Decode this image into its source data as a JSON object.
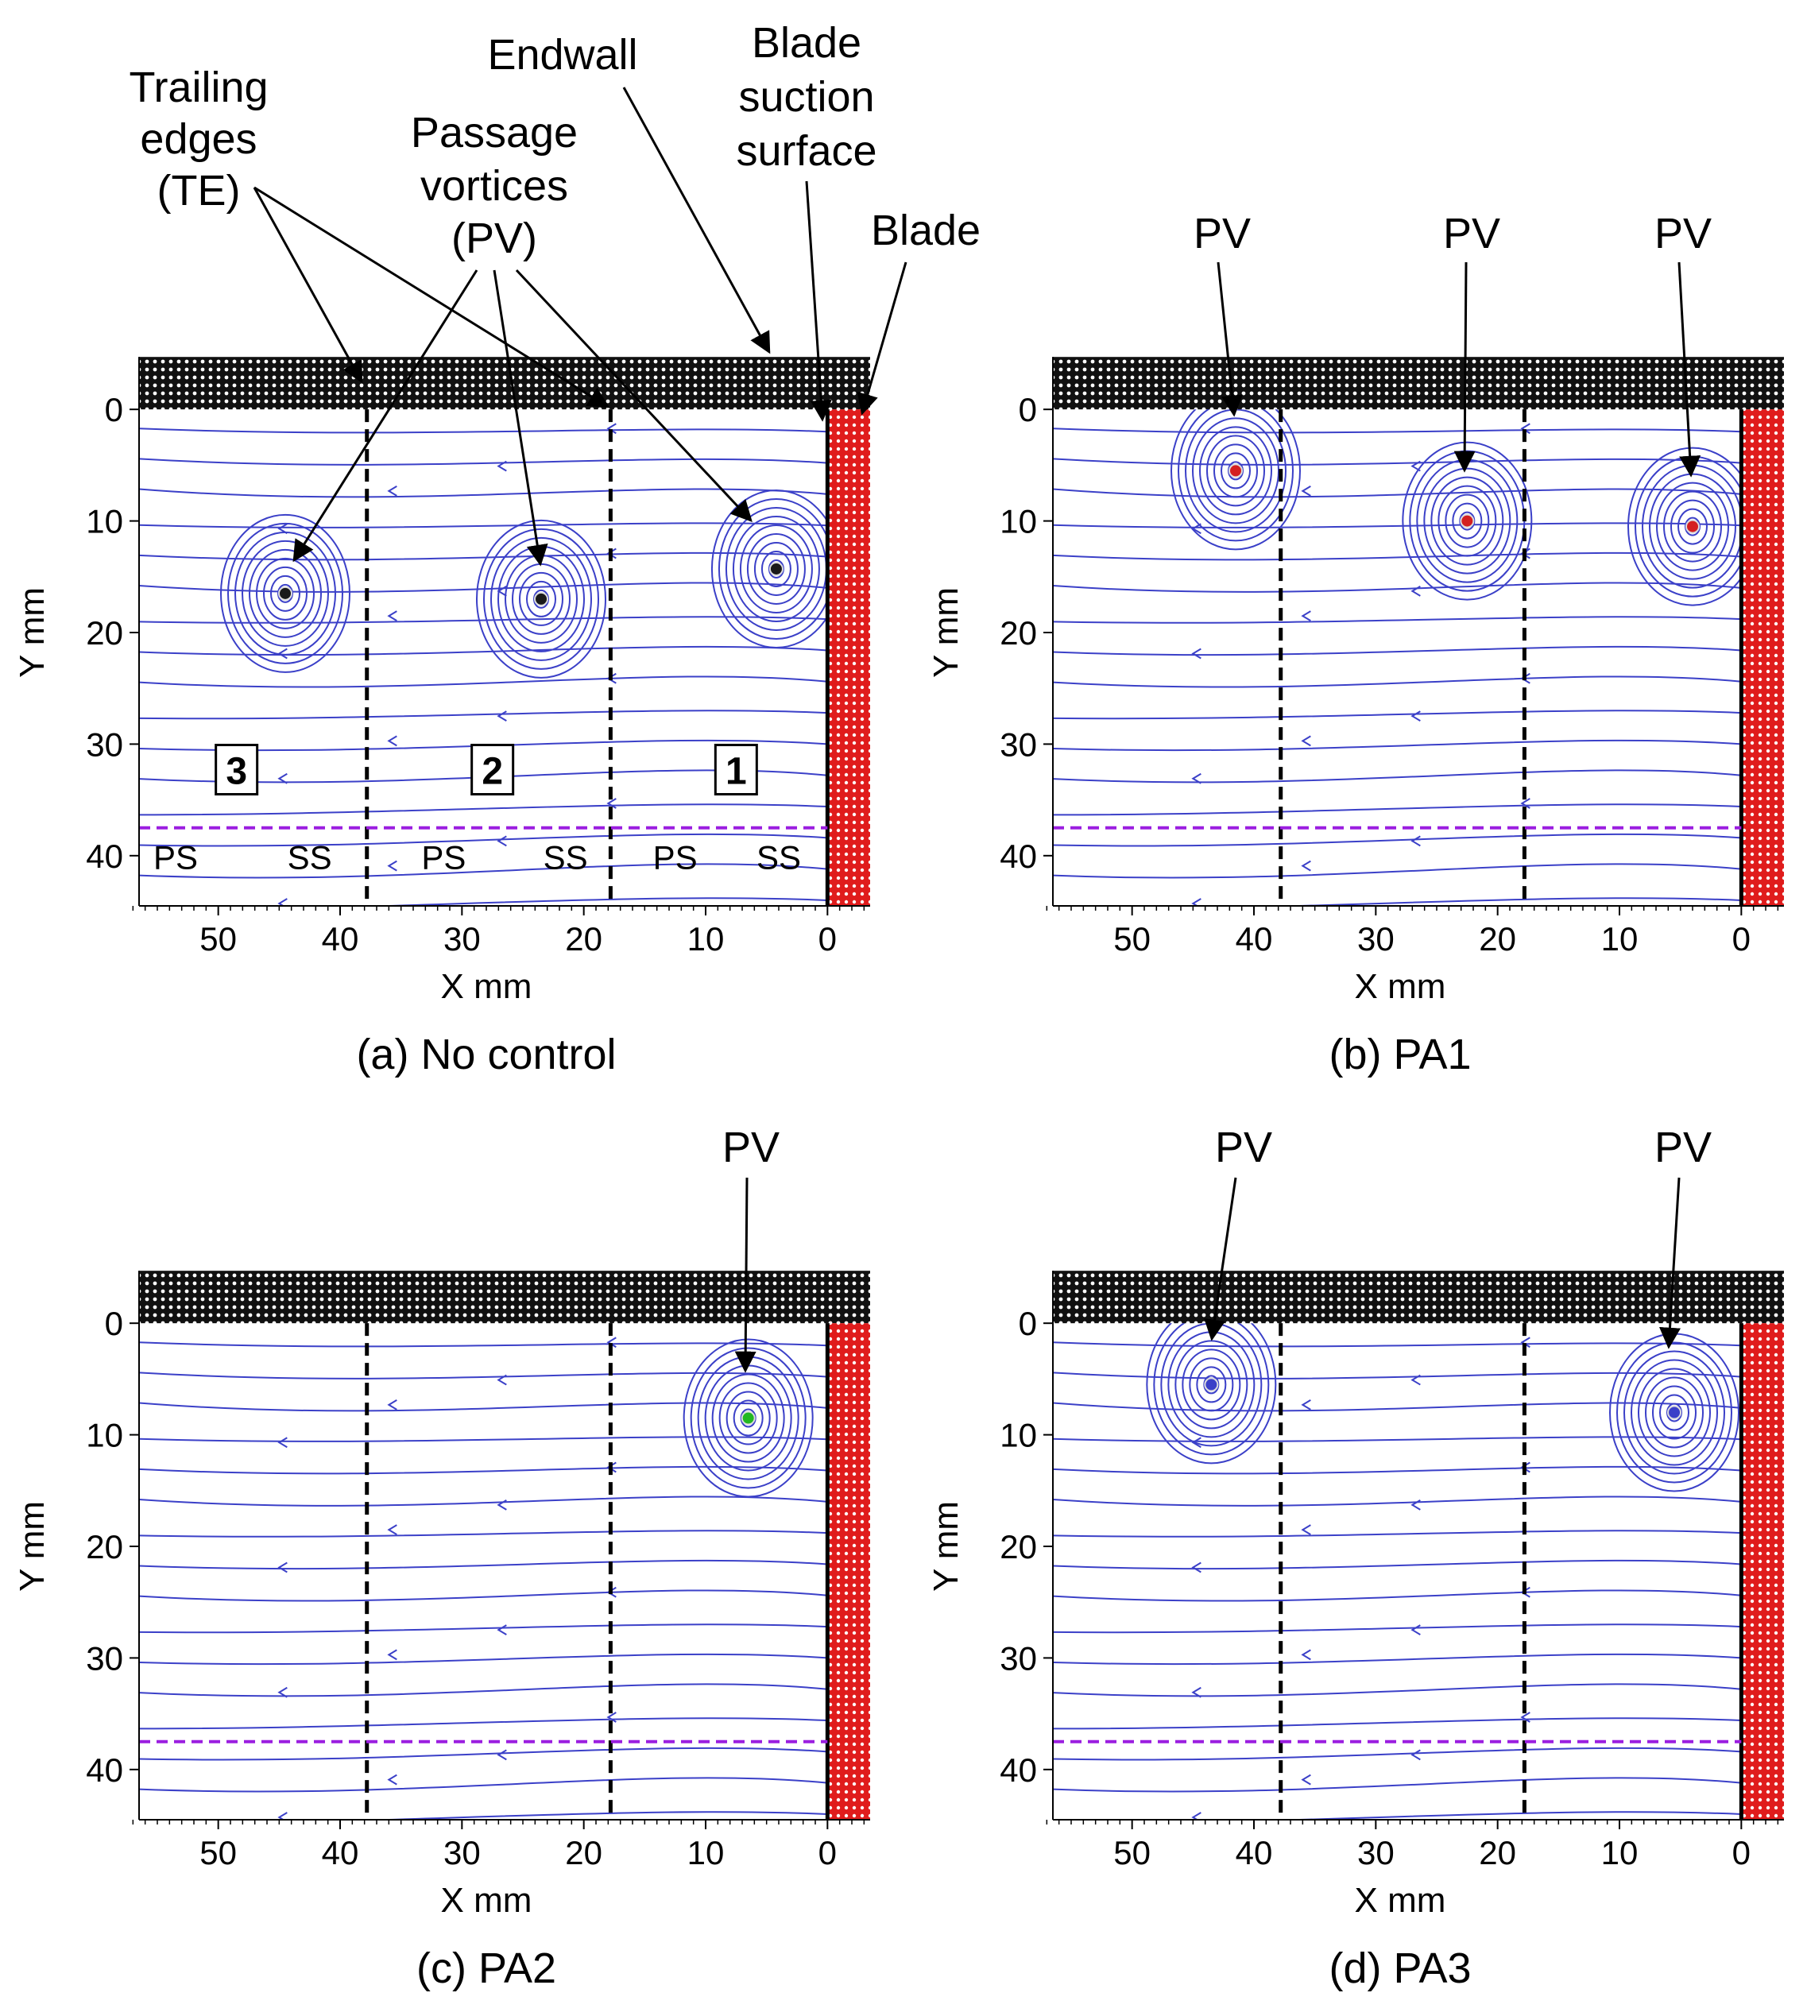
{
  "figure": {
    "colors": {
      "streamline": "#3b40c8",
      "vortex_core_a": "#1a1a1a",
      "vortex_core_b": "#d42020",
      "vortex_core_c": "#22b822",
      "vortex_core_d": "#3b40c8",
      "blade": "#e01c1c",
      "endwall": "#111111",
      "te_line": "#000000",
      "measure_line": "#9b1ee0"
    },
    "annotations": {
      "trailing_edges": [
        "Trailing",
        "edges",
        "(TE)"
      ],
      "passage_vortices": [
        "Passage",
        "vortices",
        "(PV)"
      ],
      "endwall": "Endwall",
      "blade_suction_surface": [
        "Blade",
        "suction",
        "surface"
      ],
      "blade": "Blade",
      "pv": "PV"
    },
    "region_labels": [
      "1",
      "2",
      "3"
    ],
    "side_labels": [
      "PS",
      "SS"
    ]
  },
  "chart_data": [
    {
      "type": "streamline",
      "id": "a",
      "caption": "(a) No control",
      "xlabel": "X mm",
      "ylabel": "Y mm",
      "xlim": [
        56.5,
        -3.5
      ],
      "ylim": [
        44.5,
        -4.5
      ],
      "xticks": [
        50,
        40,
        30,
        20,
        10,
        0
      ],
      "yticks": [
        0,
        10,
        20,
        30,
        40
      ],
      "trailing_edges_x": [
        37.8,
        17.8
      ],
      "blade_surface_x": 0,
      "measurement_line_y": 37.5,
      "vortices": [
        {
          "x": 44.5,
          "y": 16.5
        },
        {
          "x": 23.5,
          "y": 17.0
        },
        {
          "x": 4.2,
          "y": 14.3
        }
      ]
    },
    {
      "type": "streamline",
      "id": "b",
      "caption": "(b) PA1",
      "xlabel": "X mm",
      "ylabel": "Y mm",
      "xlim": [
        56.5,
        -3.5
      ],
      "ylim": [
        44.5,
        -4.5
      ],
      "xticks": [
        50,
        40,
        30,
        20,
        10,
        0
      ],
      "yticks": [
        0,
        10,
        20,
        30,
        40
      ],
      "trailing_edges_x": [
        37.8,
        17.8
      ],
      "blade_surface_x": 0,
      "measurement_line_y": 37.5,
      "vortices": [
        {
          "x": 41.5,
          "y": 5.5
        },
        {
          "x": 22.5,
          "y": 10.0
        },
        {
          "x": 4.0,
          "y": 10.5
        }
      ]
    },
    {
      "type": "streamline",
      "id": "c",
      "caption": "(c) PA2",
      "xlabel": "X mm",
      "ylabel": "Y mm",
      "xlim": [
        56.5,
        -3.5
      ],
      "ylim": [
        44.5,
        -4.5
      ],
      "xticks": [
        50,
        40,
        30,
        20,
        10,
        0
      ],
      "yticks": [
        0,
        10,
        20,
        30,
        40
      ],
      "trailing_edges_x": [
        37.8,
        17.8
      ],
      "blade_surface_x": 0,
      "measurement_line_y": 37.5,
      "vortices": [
        {
          "x": 6.5,
          "y": 8.5
        }
      ]
    },
    {
      "type": "streamline",
      "id": "d",
      "caption": "(d) PA3",
      "xlabel": "X mm",
      "ylabel": "Y mm",
      "xlim": [
        56.5,
        -3.5
      ],
      "ylim": [
        44.5,
        -4.5
      ],
      "xticks": [
        50,
        40,
        30,
        20,
        10,
        0
      ],
      "yticks": [
        0,
        10,
        20,
        30,
        40
      ],
      "trailing_edges_x": [
        37.8,
        17.8
      ],
      "blade_surface_x": 0,
      "measurement_line_y": 37.5,
      "vortices": [
        {
          "x": 43.5,
          "y": 5.5
        },
        {
          "x": 5.5,
          "y": 8.0
        }
      ]
    }
  ]
}
